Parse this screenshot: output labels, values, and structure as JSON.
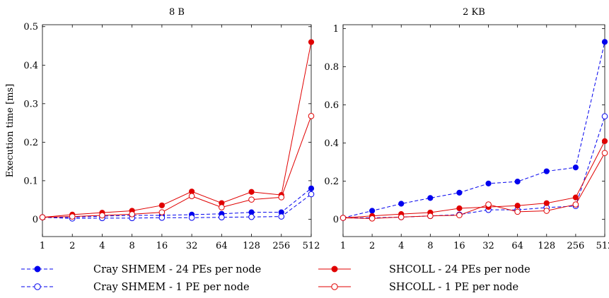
{
  "chart_data": [
    {
      "type": "line",
      "title": "8 B",
      "xlabel": "",
      "ylabel": "Execution time [ms]",
      "x": [
        1,
        2,
        4,
        8,
        16,
        32,
        64,
        128,
        256,
        512
      ],
      "x_tick_labels": [
        "1",
        "2",
        "4",
        "8",
        "16",
        "32",
        "64",
        "128",
        "256",
        "512"
      ],
      "x_scale": "log2",
      "ylim": [
        -0.045,
        0.505
      ],
      "y_ticks": [
        0,
        0.1,
        0.2,
        0.3,
        0.4,
        0.5
      ],
      "y_tick_labels": [
        "0",
        "0.1",
        "0.2",
        "0.3",
        "0.4",
        "0.5"
      ],
      "grid": false,
      "series": [
        {
          "name": "Cray SHMEM - 24 PEs per node",
          "color": "#0000ee",
          "dash": true,
          "marker": "filled",
          "values": [
            0.005,
            0.005,
            0.008,
            0.01,
            0.01,
            0.012,
            0.014,
            0.018,
            0.018,
            0.08
          ]
        },
        {
          "name": "Cray SHMEM - 1 PE per node",
          "color": "#0000ee",
          "dash": true,
          "marker": "open",
          "values": [
            0.005,
            0.002,
            0.003,
            0.003,
            0.004,
            0.004,
            0.005,
            0.006,
            0.007,
            0.065
          ]
        },
        {
          "name": "SHCOLL - 24 PEs per node",
          "color": "#e00000",
          "dash": false,
          "marker": "filled",
          "values": [
            0.005,
            0.012,
            0.017,
            0.022,
            0.036,
            0.072,
            0.042,
            0.071,
            0.063,
            0.46
          ]
        },
        {
          "name": "SHCOLL - 1 PE per node",
          "color": "#e00000",
          "dash": false,
          "marker": "open",
          "values": [
            0.005,
            0.007,
            0.01,
            0.013,
            0.018,
            0.06,
            0.031,
            0.051,
            0.057,
            0.268
          ]
        }
      ]
    },
    {
      "type": "line",
      "title": "2 KB",
      "xlabel": "",
      "ylabel": "",
      "x": [
        1,
        2,
        4,
        8,
        16,
        32,
        64,
        128,
        256,
        512
      ],
      "x_tick_labels": [
        "1",
        "2",
        "4",
        "8",
        "16",
        "32",
        "64",
        "128",
        "256",
        "512"
      ],
      "x_scale": "log2",
      "ylim": [
        -0.09,
        1.02
      ],
      "y_ticks": [
        0,
        0.2,
        0.4,
        0.6,
        0.8,
        1
      ],
      "y_tick_labels": [
        "0",
        "0.2",
        "0.4",
        "0.6",
        "0.8",
        "1"
      ],
      "grid": false,
      "series": [
        {
          "name": "Cray SHMEM - 24 PEs per node",
          "color": "#0000ee",
          "dash": true,
          "marker": "filled",
          "values": [
            0.008,
            0.045,
            0.082,
            0.112,
            0.14,
            0.188,
            0.198,
            0.252,
            0.272,
            0.93
          ]
        },
        {
          "name": "Cray SHMEM - 1 PE per node",
          "color": "#0000ee",
          "dash": true,
          "marker": "open",
          "values": [
            0.008,
            0.008,
            0.012,
            0.018,
            0.025,
            0.05,
            0.05,
            0.062,
            0.07,
            0.54
          ]
        },
        {
          "name": "SHCOLL - 24 PEs per node",
          "color": "#e00000",
          "dash": false,
          "marker": "filled",
          "values": [
            0.008,
            0.018,
            0.028,
            0.036,
            0.058,
            0.065,
            0.072,
            0.085,
            0.115,
            0.41
          ]
        },
        {
          "name": "SHCOLL - 1 PE per node",
          "color": "#e00000",
          "dash": false,
          "marker": "open",
          "values": [
            0.008,
            0.005,
            0.012,
            0.018,
            0.022,
            0.078,
            0.04,
            0.045,
            0.078,
            0.348
          ]
        }
      ]
    }
  ],
  "legend": {
    "items": [
      {
        "label": "Cray SHMEM - 24 PEs per node",
        "color": "#0000ee",
        "dash": true,
        "marker": "filled"
      },
      {
        "label": "SHCOLL - 24 PEs per node",
        "color": "#e00000",
        "dash": false,
        "marker": "filled"
      },
      {
        "label": "Cray SHMEM - 1 PE per node",
        "color": "#0000ee",
        "dash": true,
        "marker": "open"
      },
      {
        "label": "SHCOLL - 1 PE per node",
        "color": "#e00000",
        "dash": false,
        "marker": "open"
      }
    ]
  }
}
